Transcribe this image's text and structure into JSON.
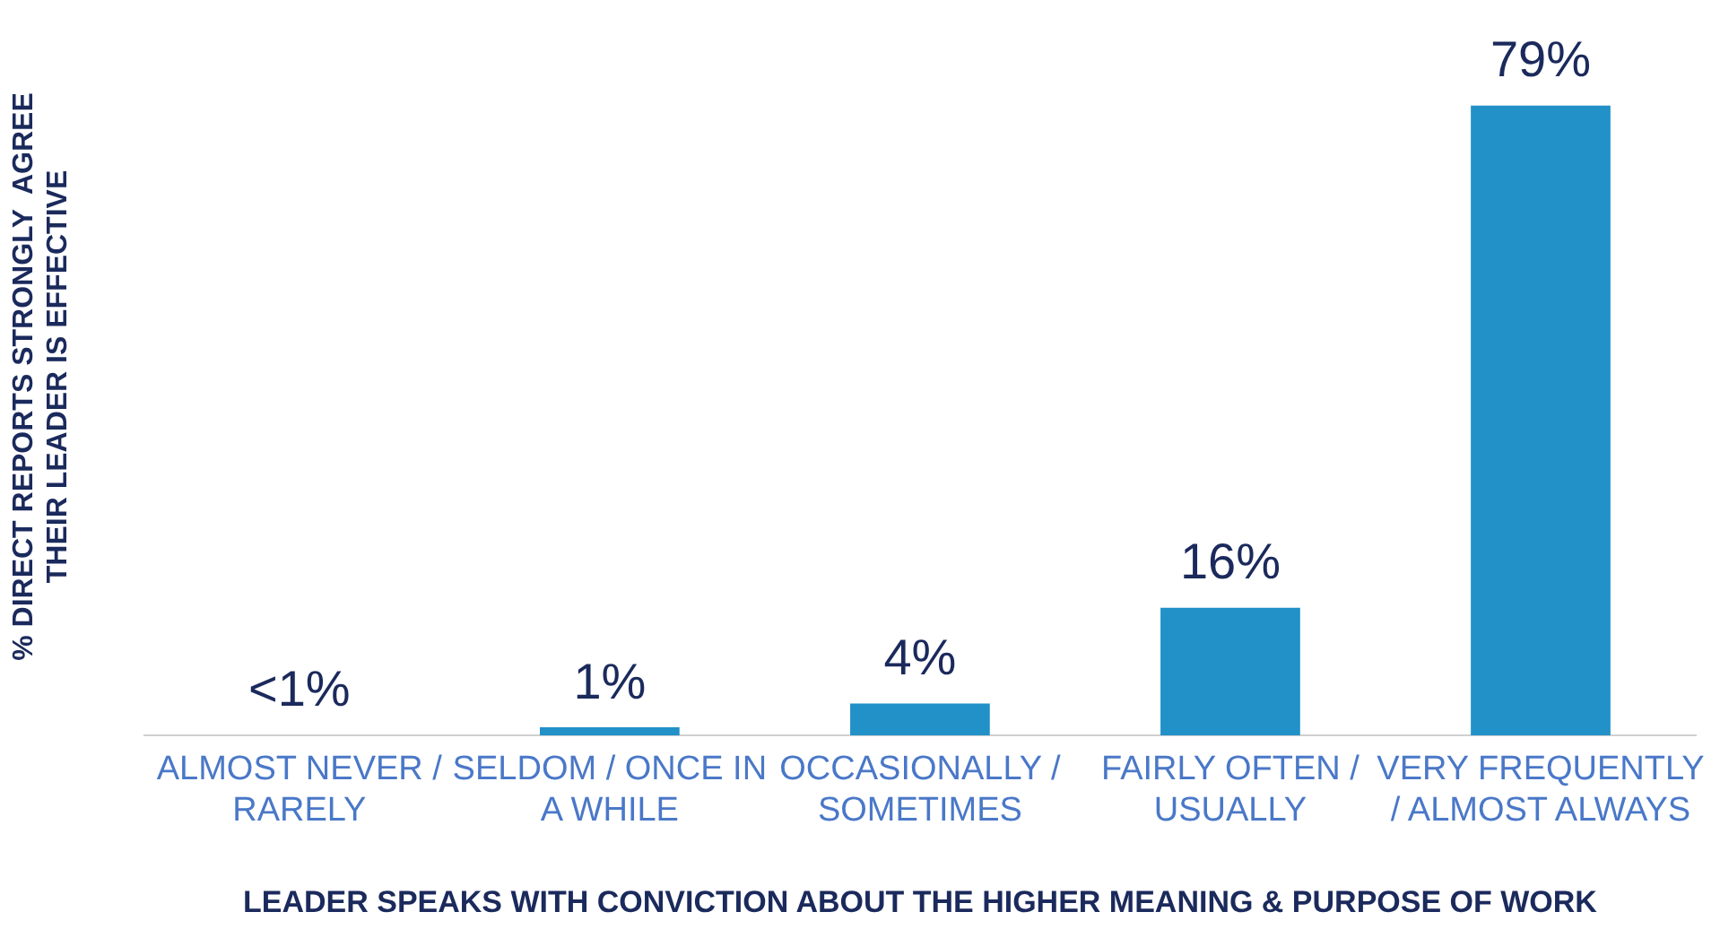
{
  "chart_data": {
    "type": "bar",
    "categories": [
      "ALMOST NEVER / RARELY",
      "SELDOM / ONCE IN A WHILE",
      "OCCASIONALLY / SOMETIMES",
      "FAIRLY OFTEN / USUALLY",
      "VERY FREQUENTLY / ALMOST ALWAYS"
    ],
    "values": [
      0,
      1,
      4,
      16,
      79
    ],
    "value_labels": [
      "<1%",
      "1%",
      "4%",
      "16%",
      "79%"
    ],
    "color": "#2191c8",
    "xlabel": "LEADER SPEAKS WITH CONVICTION ABOUT THE HIGHER MEANING & PURPOSE OF WORK",
    "ylabel": "% DIRECT REPORTS STRONGLY  AGREE\nTHEIR LEADER IS EFFECTIVE",
    "grid": false,
    "legend": false
  }
}
